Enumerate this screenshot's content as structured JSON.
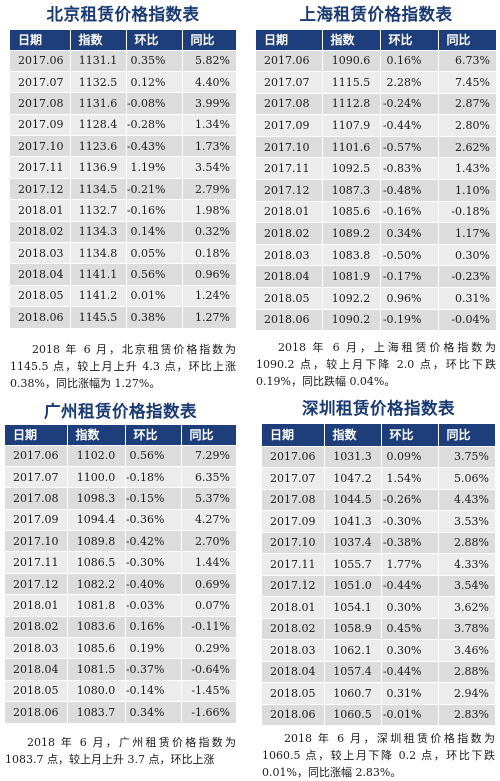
{
  "panels": [
    {
      "title": "北京租赁价格指数表",
      "headers": [
        "日期",
        "指数",
        "环比",
        "同比"
      ],
      "rows": [
        [
          "2017.06",
          "1131.1",
          "0.35%",
          "5.82%"
        ],
        [
          "2017.07",
          "1132.5",
          "0.12%",
          "4.40%"
        ],
        [
          "2017.08",
          "1131.6",
          "-0.08%",
          "3.99%"
        ],
        [
          "2017.09",
          "1128.4",
          "-0.28%",
          "1.34%"
        ],
        [
          "2017.10",
          "1123.6",
          "-0.43%",
          "1.73%"
        ],
        [
          "2017.11",
          "1136.9",
          "1.19%",
          "3.54%"
        ],
        [
          "2017.12",
          "1134.5",
          "-0.21%",
          "2.79%"
        ],
        [
          "2018.01",
          "1132.7",
          "-0.16%",
          "1.98%"
        ],
        [
          "2018.02",
          "1134.3",
          "0.14%",
          "0.32%"
        ],
        [
          "2018.03",
          "1134.8",
          "0.05%",
          "0.18%"
        ],
        [
          "2018.04",
          "1141.1",
          "0.56%",
          "0.96%"
        ],
        [
          "2018.05",
          "1141.2",
          "0.01%",
          "1.24%"
        ],
        [
          "2018.06",
          "1145.5",
          "0.38%",
          "1.27%"
        ]
      ],
      "caption": "2018 年 6 月，北京租赁价格指数为 1145.5 点，较上月上升 4.3 点，环比上涨 0.38%，同比涨幅为 1.27%。"
    },
    {
      "title": "上海租赁价格指数表",
      "headers": [
        "日期",
        "指数",
        "环比",
        "同比"
      ],
      "rows": [
        [
          "2017.06",
          "1090.6",
          "0.16%",
          "6.73%"
        ],
        [
          "2017.07",
          "1115.5",
          "2.28%",
          "7.45%"
        ],
        [
          "2017.08",
          "1112.8",
          "-0.24%",
          "2.87%"
        ],
        [
          "2017.09",
          "1107.9",
          "-0.44%",
          "2.80%"
        ],
        [
          "2017.10",
          "1101.6",
          "-0.57%",
          "2.62%"
        ],
        [
          "2017.11",
          "1092.5",
          "-0.83%",
          "1.43%"
        ],
        [
          "2017.12",
          "1087.3",
          "-0.48%",
          "1.10%"
        ],
        [
          "2018.01",
          "1085.6",
          "-0.16%",
          "-0.18%"
        ],
        [
          "2018.02",
          "1089.2",
          "0.34%",
          "1.17%"
        ],
        [
          "2018.03",
          "1083.8",
          "-0.50%",
          "0.30%"
        ],
        [
          "2018.04",
          "1081.9",
          "-0.17%",
          "-0.23%"
        ],
        [
          "2018.05",
          "1092.2",
          "0.96%",
          "0.31%"
        ],
        [
          "2018.06",
          "1090.2",
          "-0.19%",
          "-0.04%"
        ]
      ],
      "caption": "2018 年 6 月，上海租赁价格指数为 1090.2 点，较上月下降 2.0 点，环比下跌 0.19%，同比跌幅 0.04%。"
    },
    {
      "title": "广州租赁价格指数表",
      "headers": [
        "日期",
        "指数",
        "环比",
        "同比"
      ],
      "rows": [
        [
          "2017.06",
          "1102.0",
          "0.56%",
          "7.29%"
        ],
        [
          "2017.07",
          "1100.0",
          "-0.18%",
          "6.35%"
        ],
        [
          "2017.08",
          "1098.3",
          "-0.15%",
          "5.37%"
        ],
        [
          "2017.09",
          "1094.4",
          "-0.36%",
          "4.27%"
        ],
        [
          "2017.10",
          "1089.8",
          "-0.42%",
          "2.70%"
        ],
        [
          "2017.11",
          "1086.5",
          "-0.30%",
          "1.44%"
        ],
        [
          "2017.12",
          "1082.2",
          "-0.40%",
          "0.69%"
        ],
        [
          "2018.01",
          "1081.8",
          "-0.03%",
          "0.07%"
        ],
        [
          "2018.02",
          "1083.6",
          "0.16%",
          "-0.11%"
        ],
        [
          "2018.03",
          "1085.6",
          "0.19%",
          "0.29%"
        ],
        [
          "2018.04",
          "1081.5",
          "-0.37%",
          "-0.64%"
        ],
        [
          "2018.05",
          "1080.0",
          "-0.14%",
          "-1.45%"
        ],
        [
          "2018.06",
          "1083.7",
          "0.34%",
          "-1.66%"
        ]
      ],
      "caption": "2018 年 6 月，广州租赁价格指数为 1083.7 点，较上月上升 3.7 点，环比上涨"
    },
    {
      "title": "深圳租赁价格指数表",
      "headers": [
        "日期",
        "指数",
        "环比",
        "同比"
      ],
      "rows": [
        [
          "2017.06",
          "1031.3",
          "0.09%",
          "3.75%"
        ],
        [
          "2017.07",
          "1047.2",
          "1.54%",
          "5.06%"
        ],
        [
          "2017.08",
          "1044.5",
          "-0.26%",
          "4.43%"
        ],
        [
          "2017.09",
          "1041.3",
          "-0.30%",
          "3.53%"
        ],
        [
          "2017.10",
          "1037.4",
          "-0.38%",
          "2.88%"
        ],
        [
          "2017.11",
          "1055.7",
          "1.77%",
          "4.33%"
        ],
        [
          "2017.12",
          "1051.0",
          "-0.44%",
          "3.54%"
        ],
        [
          "2018.01",
          "1054.1",
          "0.30%",
          "3.62%"
        ],
        [
          "2018.02",
          "1058.9",
          "0.45%",
          "3.78%"
        ],
        [
          "2018.03",
          "1062.1",
          "0.30%",
          "3.46%"
        ],
        [
          "2018.04",
          "1057.4",
          "-0.44%",
          "2.88%"
        ],
        [
          "2018.05",
          "1060.7",
          "0.31%",
          "2.94%"
        ],
        [
          "2018.06",
          "1060.5",
          "-0.01%",
          "2.83%"
        ]
      ],
      "caption": "2018 年 6 月，深圳租赁价格指数为 1060.5 点，较上月下降 0.2 点，环比下跌 0.01%，同比涨幅 2.83%。"
    }
  ]
}
